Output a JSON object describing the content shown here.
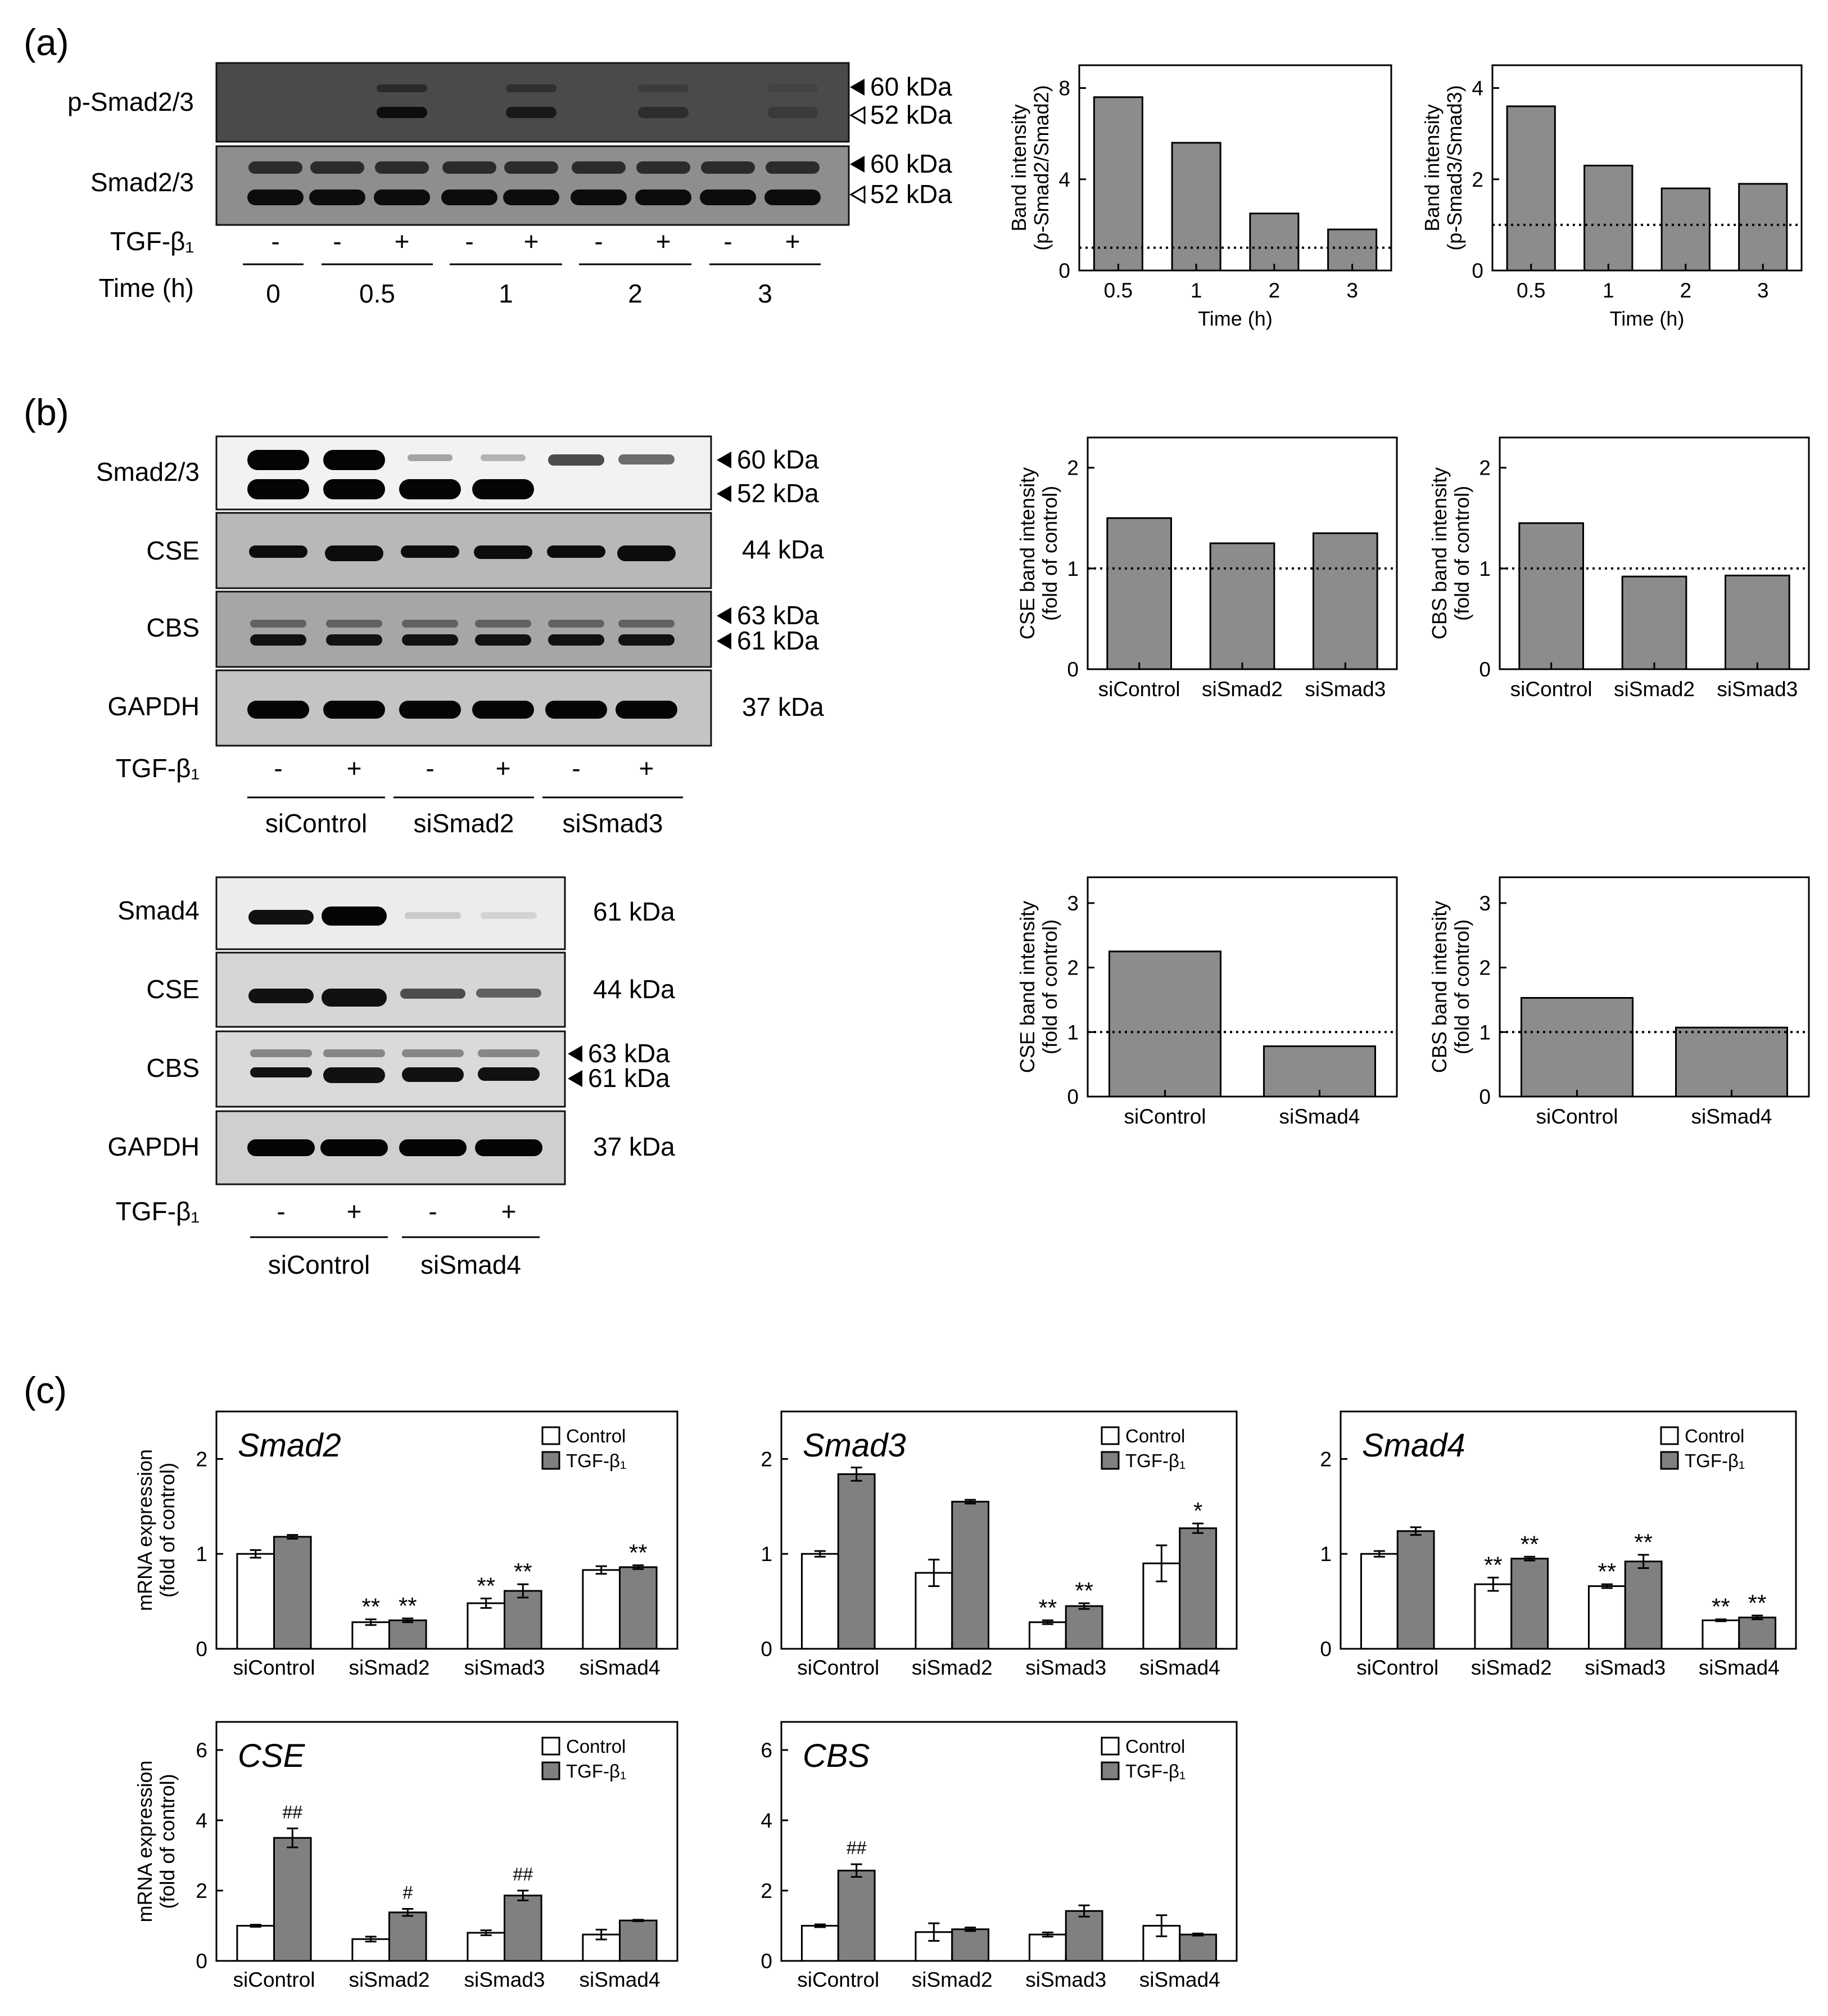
{
  "panels": {
    "a": {
      "label": "(a)"
    },
    "b": {
      "label": "(b)"
    },
    "c": {
      "label": "(c)"
    }
  },
  "blots": {
    "a": {
      "rows": [
        {
          "label": "p-Smad2/3",
          "markers": [
            {
              "arrow": "filled",
              "text": "60 kDa"
            },
            {
              "arrow": "open",
              "text": "52 kDa"
            }
          ]
        },
        {
          "label": "Smad2/3",
          "markers": [
            {
              "arrow": "filled",
              "text": "60 kDa"
            },
            {
              "arrow": "open",
              "text": "52 kDa"
            }
          ]
        }
      ],
      "treatment_label": "TGF-β₁",
      "treatment": [
        "-",
        "-",
        "+",
        "-",
        "+",
        "-",
        "+",
        "-",
        "+"
      ],
      "time_label": "Time (h)",
      "time_groups": [
        "0",
        "0.5",
        "1",
        "2",
        "3"
      ]
    },
    "b1": {
      "rows": [
        {
          "label": "Smad2/3",
          "markers": [
            {
              "arrow": "filled",
              "text": "60 kDa"
            },
            {
              "arrow": "filled",
              "text": "52 kDa"
            }
          ]
        },
        {
          "label": "CSE",
          "markers": [
            {
              "arrow": "none",
              "text": "44 kDa"
            }
          ]
        },
        {
          "label": "CBS",
          "markers": [
            {
              "arrow": "filled",
              "text": "63 kDa"
            },
            {
              "arrow": "filled",
              "text": "61 kDa"
            }
          ]
        },
        {
          "label": "GAPDH",
          "markers": [
            {
              "arrow": "none",
              "text": "37 kDa"
            }
          ]
        }
      ],
      "treatment_label": "TGF-β₁",
      "treatment": [
        "-",
        "+",
        "-",
        "+",
        "-",
        "+"
      ],
      "groups": [
        "siControl",
        "siSmad2",
        "siSmad3"
      ]
    },
    "b2": {
      "rows": [
        {
          "label": "Smad4",
          "markers": [
            {
              "arrow": "none",
              "text": "61 kDa"
            }
          ]
        },
        {
          "label": "CSE",
          "markers": [
            {
              "arrow": "none",
              "text": "44 kDa"
            }
          ]
        },
        {
          "label": "CBS",
          "markers": [
            {
              "arrow": "filled",
              "text": "63 kDa"
            },
            {
              "arrow": "filled",
              "text": "61 kDa"
            }
          ]
        },
        {
          "label": "GAPDH",
          "markers": [
            {
              "arrow": "none",
              "text": "37 kDa"
            }
          ]
        }
      ],
      "treatment_label": "TGF-β₁",
      "treatment": [
        "-",
        "+",
        "-",
        "+"
      ],
      "groups": [
        "siControl",
        "siSmad4"
      ]
    }
  },
  "chart_data": [
    {
      "id": "a1",
      "type": "bar",
      "title": "",
      "ylabel": "Band intensity (p-Smad2/Smad2)",
      "xlabel": "Time (h)",
      "categories": [
        "0.5",
        "1",
        "2",
        "3"
      ],
      "values": [
        7.6,
        5.6,
        2.5,
        1.8
      ],
      "ylim": [
        0,
        9
      ],
      "yticks": [
        0,
        4,
        8
      ],
      "reference_line": 1
    },
    {
      "id": "a2",
      "type": "bar",
      "title": "",
      "ylabel": "Band intensity (p-Smad3/Smad3)",
      "xlabel": "Time (h)",
      "categories": [
        "0.5",
        "1",
        "2",
        "3"
      ],
      "values": [
        3.6,
        2.3,
        1.8,
        1.9
      ],
      "ylim": [
        0,
        4.5
      ],
      "yticks": [
        0,
        2,
        4
      ],
      "reference_line": 1
    },
    {
      "id": "b1",
      "type": "bar",
      "title": "",
      "ylabel": "CSE band intensity (fold of control)",
      "xlabel": "",
      "categories": [
        "siControl",
        "siSmad2",
        "siSmad3"
      ],
      "values": [
        1.5,
        1.25,
        1.35
      ],
      "ylim": [
        0,
        2.3
      ],
      "yticks": [
        0,
        1,
        2
      ],
      "reference_line": 1
    },
    {
      "id": "b2",
      "type": "bar",
      "title": "",
      "ylabel": "CBS band intensity (fold of control)",
      "xlabel": "",
      "categories": [
        "siControl",
        "siSmad2",
        "siSmad3"
      ],
      "values": [
        1.45,
        0.92,
        0.93
      ],
      "ylim": [
        0,
        2.3
      ],
      "yticks": [
        0,
        1,
        2
      ],
      "reference_line": 1
    },
    {
      "id": "b3",
      "type": "bar",
      "title": "",
      "ylabel": "CSE band intensity (fold of control)",
      "xlabel": "",
      "categories": [
        "siControl",
        "siSmad4"
      ],
      "values": [
        2.25,
        0.78
      ],
      "ylim": [
        0,
        3.4
      ],
      "yticks": [
        0,
        1,
        2,
        3
      ],
      "reference_line": 1
    },
    {
      "id": "b4",
      "type": "bar",
      "title": "",
      "ylabel": "CBS band intensity (fold of control)",
      "xlabel": "",
      "categories": [
        "siControl",
        "siSmad4"
      ],
      "values": [
        1.53,
        1.07
      ],
      "ylim": [
        0,
        3.4
      ],
      "yticks": [
        0,
        1,
        2,
        3
      ],
      "reference_line": 1
    },
    {
      "id": "c1",
      "type": "bar",
      "title": "Smad2",
      "ylabel": "mRNA expression (fold of control)",
      "xlabel": "",
      "categories": [
        "siControl",
        "siSmad2",
        "siSmad3",
        "siSmad4"
      ],
      "ylim": [
        0,
        2.5
      ],
      "yticks": [
        0,
        1,
        2
      ],
      "legend": [
        "Control",
        "TGF-β₁"
      ],
      "series": [
        {
          "name": "Control",
          "values": [
            1.0,
            0.28,
            0.48,
            0.83
          ],
          "errors": [
            0.04,
            0.03,
            0.05,
            0.04
          ],
          "marks": [
            "",
            "**",
            "**",
            ""
          ]
        },
        {
          "name": "TGF-β₁",
          "values": [
            1.18,
            0.3,
            0.61,
            0.86
          ],
          "errors": [
            0.02,
            0.02,
            0.07,
            0.02
          ],
          "marks": [
            "",
            "**",
            "**",
            "**"
          ]
        }
      ]
    },
    {
      "id": "c2",
      "type": "bar",
      "title": "Smad3",
      "ylabel": "",
      "xlabel": "",
      "categories": [
        "siControl",
        "siSmad2",
        "siSmad3",
        "siSmad4"
      ],
      "ylim": [
        0,
        2.5
      ],
      "yticks": [
        0,
        1,
        2
      ],
      "legend": [
        "Control",
        "TGF-β₁"
      ],
      "series": [
        {
          "name": "Control",
          "values": [
            1.0,
            0.8,
            0.28,
            0.9
          ],
          "errors": [
            0.03,
            0.14,
            0.02,
            0.19
          ],
          "marks": [
            "",
            "",
            "**",
            ""
          ]
        },
        {
          "name": "TGF-β₁",
          "values": [
            1.84,
            1.55,
            0.45,
            1.27
          ],
          "errors": [
            0.07,
            0.02,
            0.03,
            0.05
          ],
          "marks": [
            "",
            "",
            "**",
            "*"
          ]
        }
      ]
    },
    {
      "id": "c3",
      "type": "bar",
      "title": "Smad4",
      "ylabel": "",
      "xlabel": "",
      "categories": [
        "siControl",
        "siSmad2",
        "siSmad3",
        "siSmad4"
      ],
      "ylim": [
        0,
        2.5
      ],
      "yticks": [
        0,
        1,
        2
      ],
      "legend": [
        "Control",
        "TGF-β₁"
      ],
      "series": [
        {
          "name": "Control",
          "values": [
            1.0,
            0.68,
            0.66,
            0.3
          ],
          "errors": [
            0.03,
            0.07,
            0.02,
            0.01
          ],
          "marks": [
            "",
            "**",
            "**",
            "**"
          ]
        },
        {
          "name": "TGF-β₁",
          "values": [
            1.24,
            0.95,
            0.92,
            0.33
          ],
          "errors": [
            0.04,
            0.02,
            0.07,
            0.02
          ],
          "marks": [
            "",
            "**",
            "**",
            "**"
          ]
        }
      ]
    },
    {
      "id": "c4",
      "type": "bar",
      "title": "CSE",
      "ylabel": "mRNA expression (fold of control)",
      "xlabel": "",
      "categories": [
        "siControl",
        "siSmad2",
        "siSmad3",
        "siSmad4"
      ],
      "ylim": [
        0,
        6.8
      ],
      "yticks": [
        0,
        2,
        4,
        6
      ],
      "legend": [
        "Control",
        "TGF-β₁"
      ],
      "series": [
        {
          "name": "Control",
          "values": [
            1.0,
            0.62,
            0.8,
            0.75
          ],
          "errors": [
            0.03,
            0.07,
            0.07,
            0.14
          ],
          "marks": [
            "",
            "",
            "",
            ""
          ]
        },
        {
          "name": "TGF-β₁",
          "values": [
            3.5,
            1.38,
            1.86,
            1.15
          ],
          "errors": [
            0.27,
            0.1,
            0.14,
            0.02
          ],
          "marks": [
            "##",
            "#",
            "##",
            ""
          ]
        }
      ]
    },
    {
      "id": "c5",
      "type": "bar",
      "title": "CBS",
      "ylabel": "",
      "xlabel": "",
      "categories": [
        "siControl",
        "siSmad2",
        "siSmad3",
        "siSmad4"
      ],
      "ylim": [
        0,
        6.8
      ],
      "yticks": [
        0,
        2,
        4,
        6
      ],
      "legend": [
        "Control",
        "TGF-β₁"
      ],
      "series": [
        {
          "name": "Control",
          "values": [
            1.0,
            0.82,
            0.75,
            1.0
          ],
          "errors": [
            0.04,
            0.25,
            0.06,
            0.3
          ],
          "marks": [
            "",
            "",
            "",
            ""
          ]
        },
        {
          "name": "TGF-β₁",
          "values": [
            2.57,
            0.9,
            1.42,
            0.75
          ],
          "errors": [
            0.18,
            0.05,
            0.16,
            0.03
          ],
          "marks": [
            "##",
            "",
            "",
            ""
          ]
        }
      ]
    }
  ]
}
